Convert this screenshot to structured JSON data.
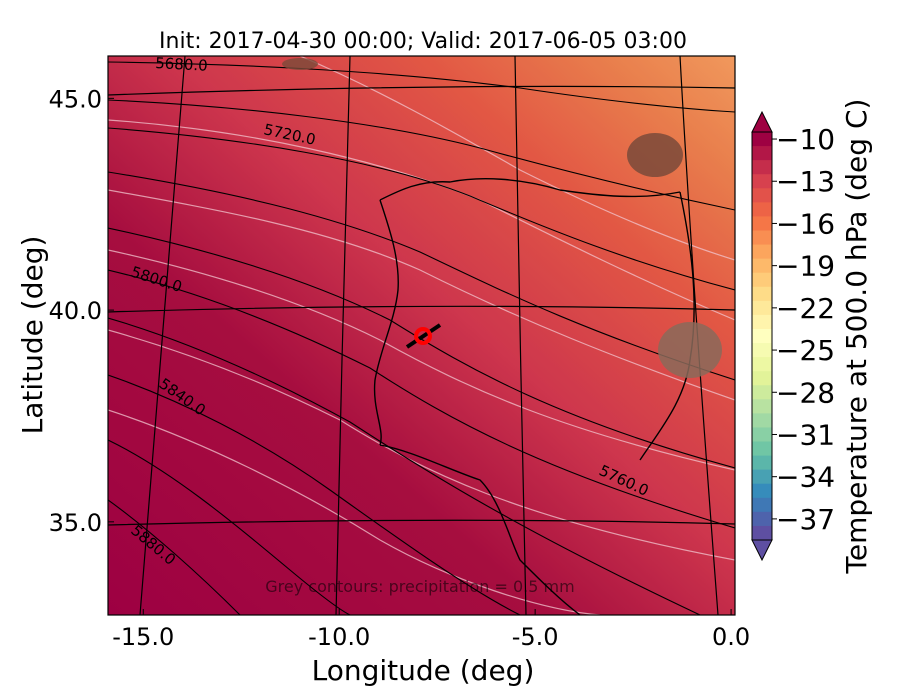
{
  "title": "Init: 2017-04-30 00:00; Valid: 2017-06-05 03:00",
  "x_axis": {
    "label": "Longitude (deg)",
    "range": [
      -15.9,
      0.1
    ],
    "ticks": [
      -15.0,
      -10.0,
      -5.0,
      0.0
    ],
    "tick_labels": [
      "-15.0",
      "-10.0",
      "-5.0",
      "0.0"
    ]
  },
  "y_axis": {
    "label": "Latitude (deg)",
    "range": [
      32.8,
      46.0
    ],
    "ticks": [
      35.0,
      40.0,
      45.0
    ],
    "tick_labels": [
      "35.0",
      "40.0",
      "45.0"
    ]
  },
  "colorbar": {
    "label": "Temperature at 500.0 hPa (deg C)",
    "range": [
      -38.5,
      -9.5
    ],
    "ticks": [
      -10,
      -13,
      -16,
      -19,
      -22,
      -25,
      -28,
      -31,
      -34,
      -37
    ],
    "tick_labels": [
      "−10",
      "−13",
      "−16",
      "−19",
      "−22",
      "−25",
      "−28",
      "−31",
      "−34",
      "−37"
    ],
    "extend": "both",
    "colormap": [
      "#9e0142",
      "#d53e4f",
      "#f46d43",
      "#fdae61",
      "#fee08b",
      "#ffffbf",
      "#e6f598",
      "#abdda4",
      "#66c2a5",
      "#3288bd",
      "#5e4fa2"
    ]
  },
  "height_contours": {
    "color": "#000000",
    "labels": [
      "5680.0",
      "5720.0",
      "5800.0",
      "5840.0",
      "5880.0",
      "5760.0"
    ]
  },
  "footnote": "Grey contours: precipitation = 0.5 mm",
  "marker": {
    "lon": -7.6,
    "lat": 39.3,
    "color": "#ff0000"
  }
}
